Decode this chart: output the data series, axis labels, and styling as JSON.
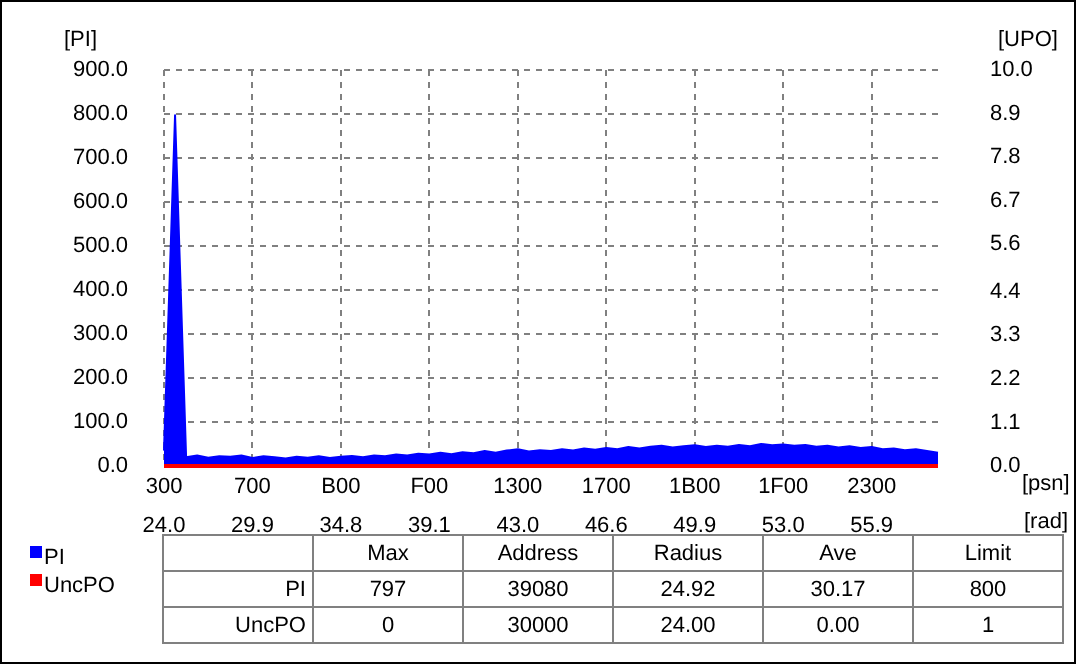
{
  "chart_data": {
    "type": "area",
    "xlabel": "[psn]",
    "x2label": "[rad]",
    "ylabel": "[PI]",
    "y2label": "[UPO]",
    "categories": [
      "300\n24.0",
      null,
      null,
      null,
      null,
      null,
      null,
      null,
      "700\n29.9",
      null,
      null,
      null,
      null,
      null,
      null,
      null,
      "B00\n34.8",
      null,
      null,
      null,
      null,
      null,
      null,
      null,
      "F00\n39.1",
      null,
      null,
      null,
      null,
      null,
      null,
      null,
      "1300\n43.0",
      null,
      null,
      null,
      null,
      null,
      null,
      null,
      "1700\n46.6",
      null,
      null,
      null,
      null,
      null,
      null,
      null,
      "1B00\n49.9",
      null,
      null,
      null,
      null,
      null,
      null,
      null,
      "1F00\n53.0",
      null,
      null,
      null,
      null,
      null,
      null,
      null,
      "2300\n55.9",
      null,
      null,
      null,
      null,
      null,
      null
    ],
    "ylim": [
      0,
      900
    ],
    "yticks": [
      {
        "value": 0,
        "label": "0.0"
      },
      {
        "value": 100,
        "label": "100.0"
      },
      {
        "value": 200,
        "label": "200.0"
      },
      {
        "value": 300,
        "label": "300.0"
      },
      {
        "value": 400,
        "label": "400.0"
      },
      {
        "value": 500,
        "label": "500.0"
      },
      {
        "value": 600,
        "label": "600.0"
      },
      {
        "value": 700,
        "label": "700.0"
      },
      {
        "value": 800,
        "label": "800.0"
      },
      {
        "value": 900,
        "label": "900.0"
      }
    ],
    "y2lim": [
      0,
      10
    ],
    "y2ticks": [
      {
        "value": 0,
        "label": "0.0"
      },
      1.1,
      2.2,
      3.3,
      4.4,
      5.6,
      6.7,
      7.8,
      8.9,
      {
        "value": 10,
        "label": "10.0"
      }
    ],
    "grid": true,
    "legend": "bottom left",
    "marker": "none",
    "line_style": "solid",
    "series": [
      {
        "name": "PI",
        "color": "#0000ff",
        "values": [
          35,
          797,
          20,
          24,
          19,
          22,
          21,
          24,
          18,
          22,
          20,
          17,
          21,
          19,
          22,
          18,
          21,
          23,
          20,
          24,
          22,
          26,
          24,
          28,
          26,
          30,
          27,
          31,
          29,
          34,
          30,
          35,
          38,
          33,
          36,
          34,
          38,
          35,
          40,
          37,
          41,
          38,
          43,
          40,
          44,
          46,
          42,
          45,
          47,
          43,
          46,
          44,
          48,
          45,
          50,
          47,
          49,
          46,
          48,
          44,
          46,
          42,
          45,
          41,
          43,
          38,
          40,
          36,
          38,
          34,
          30
        ]
      },
      {
        "name": "UncPO",
        "type": "line",
        "axis": "y2",
        "color": "#ff0000",
        "values": [
          0,
          0,
          0,
          0,
          0,
          0,
          0,
          0,
          0,
          0,
          0,
          0,
          0,
          0,
          0,
          0,
          0,
          0,
          0,
          0,
          0,
          0,
          0,
          0,
          0,
          0,
          0,
          0,
          0,
          0,
          0,
          0,
          0,
          0,
          0,
          0,
          0,
          0,
          0,
          0,
          0,
          0,
          0,
          0,
          0,
          0,
          0,
          0,
          0,
          0,
          0,
          0,
          0,
          0,
          0,
          0,
          0,
          0,
          0,
          0,
          0,
          0,
          0,
          0,
          0,
          0,
          0,
          0,
          0,
          0,
          0
        ]
      }
    ],
    "annotations": [
      "Max",
      "Address",
      "Radius",
      "Ave",
      "Limit",
      "PI",
      "797",
      "39080",
      "24.92",
      "30.17",
      "800",
      "UncPO",
      "0",
      "30000",
      "24.00",
      "0.00",
      "1"
    ]
  }
}
